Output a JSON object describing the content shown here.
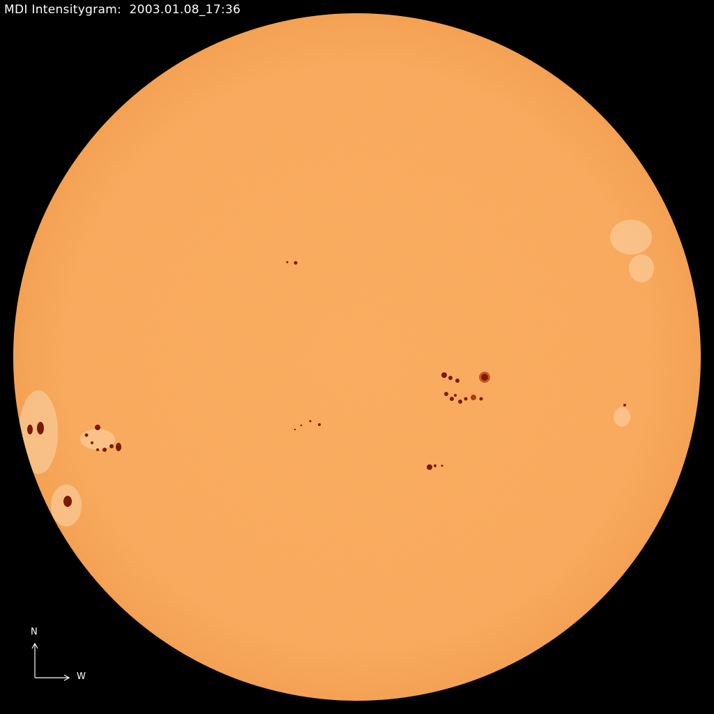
{
  "header": {
    "title": "MDI Intensitygram:  2003.01.08_17:36"
  },
  "image": {
    "subject": "solar-disk-intensitygram",
    "colors": {
      "background": "#000000",
      "disk": "#f8a556",
      "limb": "#f29a48",
      "sunspot_umbra": "#7a1a00",
      "sunspot_penumbra": "#c65a1c",
      "faculae": "#fbd6aa"
    }
  },
  "compass": {
    "north_label": "N",
    "west_label": "W"
  }
}
